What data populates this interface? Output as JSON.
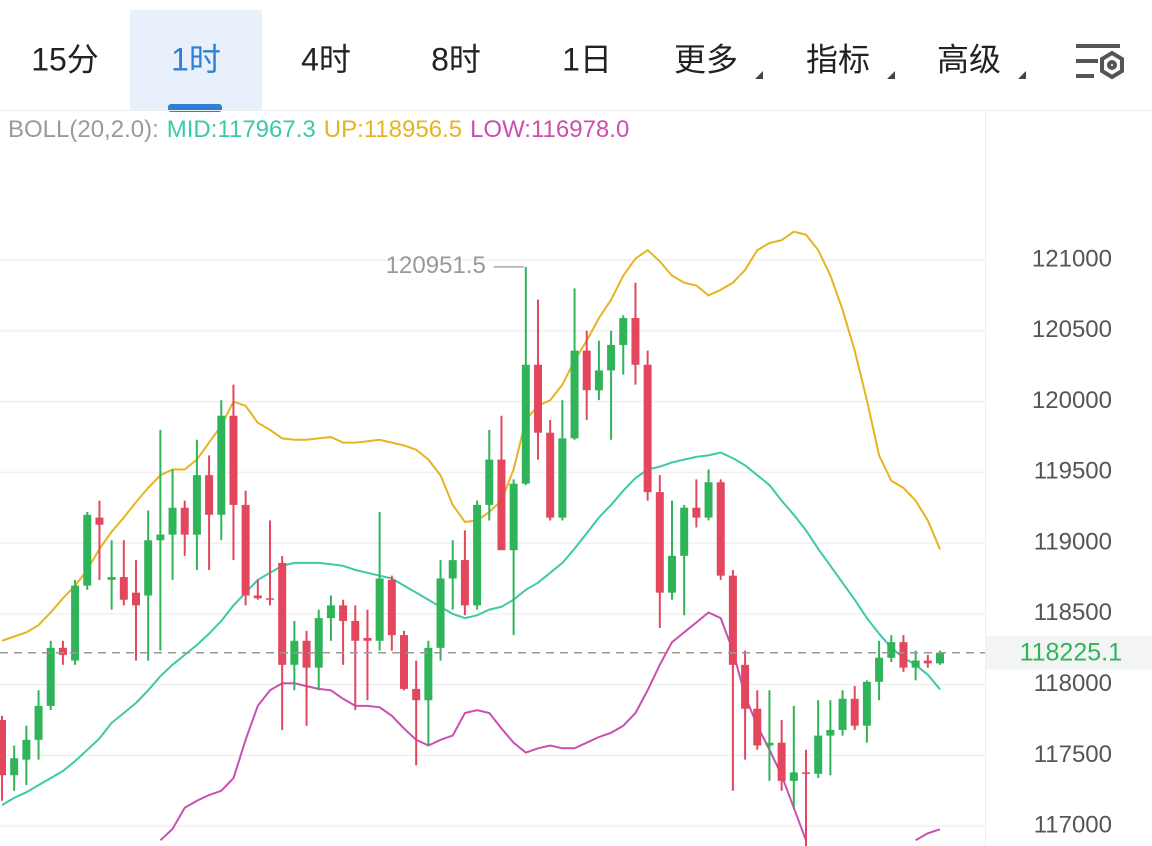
{
  "tabs": [
    "15分",
    "1时",
    "4时",
    "8时",
    "1日",
    "更多",
    "指标",
    "高级"
  ],
  "active_tab": 1,
  "chart_data": {
    "type": "candlestick",
    "indicator": {
      "name": "BOLL(20,2.0):",
      "mid": "MID:117967.3",
      "up": "UP:118956.5",
      "low": "LOW:116978.0"
    },
    "open": [
      117750,
      117360,
      117470,
      117610,
      117850,
      118260,
      118170,
      118700,
      119180,
      118740,
      118760,
      118650,
      118630,
      119020,
      119060,
      119250,
      119060,
      119480,
      119200,
      119900,
      119270,
      118630,
      118610,
      118860,
      118140,
      118310,
      118120,
      118470,
      118560,
      118450,
      118330,
      118310,
      118740,
      118350,
      117970,
      117890,
      118260,
      118750,
      118880,
      118560,
      119270,
      119590,
      118950,
      119420,
      120260,
      119780,
      119180,
      119740,
      120360,
      120080,
      120220,
      120400,
      120590,
      120260,
      119360,
      118650,
      118910,
      119250,
      119180,
      119430,
      118770,
      118140,
      117830,
      117570,
      117590,
      117320,
      117380,
      117370,
      117640,
      117680,
      117900,
      117710,
      118020,
      118190,
      118300,
      118120,
      118170,
      118150
    ],
    "high": [
      117780,
      117570,
      117710,
      117960,
      118310,
      118310,
      118740,
      119220,
      119300,
      119020,
      119020,
      118880,
      119230,
      119800,
      119520,
      119300,
      119730,
      119620,
      120010,
      120120,
      119370,
      118740,
      119160,
      118910,
      118450,
      118380,
      118530,
      118630,
      118600,
      118560,
      118530,
      119220,
      118770,
      118380,
      118170,
      118310,
      118880,
      119020,
      119090,
      119300,
      119800,
      119900,
      119450,
      120951.5,
      120720,
      119870,
      120010,
      120800,
      120500,
      120430,
      120500,
      120610,
      120840,
      120360,
      119480,
      119300,
      119270,
      119450,
      119520,
      119450,
      118810,
      118240,
      117960,
      117960,
      117750,
      117850,
      117540,
      117890,
      117890,
      117960,
      117990,
      118030,
      118310,
      118350,
      118350,
      118240,
      118210,
      118240
    ],
    "low": [
      117180,
      117250,
      117290,
      117470,
      117820,
      118140,
      118140,
      118670,
      118740,
      118530,
      118560,
      118170,
      118170,
      118240,
      118740,
      118910,
      118810,
      118810,
      119020,
      118880,
      118560,
      118600,
      118560,
      117680,
      117960,
      117710,
      117960,
      118310,
      118140,
      117820,
      117890,
      118240,
      118240,
      117960,
      117430,
      117570,
      118170,
      118530,
      118490,
      118530,
      119160,
      118950,
      118350,
      119410,
      119590,
      119160,
      119160,
      119730,
      119870,
      120010,
      119730,
      120190,
      120120,
      119300,
      118400,
      118600,
      118490,
      119110,
      119160,
      118740,
      117250,
      117470,
      117540,
      117320,
      117250,
      117130,
      116860,
      117340,
      117360,
      117640,
      117680,
      117590,
      117890,
      118160,
      118090,
      118030,
      118120,
      118140
    ],
    "close": [
      117360,
      117480,
      117610,
      117850,
      118260,
      118210,
      118700,
      119200,
      119130,
      118760,
      118600,
      118560,
      119020,
      119060,
      119250,
      119060,
      119480,
      119200,
      119900,
      119270,
      118630,
      118610,
      118600,
      118140,
      118310,
      118120,
      118470,
      118560,
      118450,
      118310,
      118310,
      118750,
      118350,
      117970,
      117890,
      118260,
      118750,
      118880,
      118560,
      119270,
      119590,
      118950,
      119420,
      120260,
      119780,
      119180,
      119740,
      120360,
      120080,
      120220,
      120400,
      120590,
      120260,
      119360,
      118650,
      118910,
      119250,
      119180,
      119430,
      118770,
      118140,
      117830,
      117570,
      117590,
      117320,
      117380,
      117370,
      117640,
      117680,
      117900,
      117710,
      118020,
      118190,
      118300,
      118120,
      118170,
      118150,
      118225.1
    ],
    "up_color": "#2fb45a",
    "down_color": "#e2475e",
    "series": [
      {
        "name": "UP",
        "color": "#e6b422",
        "values": [
          118310,
          118340,
          118370,
          118420,
          118510,
          118610,
          118700,
          118810,
          118960,
          119080,
          119180,
          119290,
          119390,
          119480,
          119520,
          119520,
          119590,
          119710,
          119830,
          120000,
          119970,
          119850,
          119800,
          119740,
          119730,
          119730,
          119740,
          119750,
          119710,
          119710,
          119720,
          119730,
          119710,
          119690,
          119660,
          119590,
          119480,
          119270,
          119150,
          119160,
          119220,
          119300,
          119520,
          119870,
          119970,
          120010,
          120120,
          120290,
          120430,
          120590,
          120720,
          120890,
          121010,
          121070,
          120990,
          120890,
          120840,
          120820,
          120750,
          120790,
          120840,
          120930,
          121070,
          121120,
          121140,
          121200,
          121180,
          121070,
          120890,
          120650,
          120360,
          120010,
          119620,
          119440,
          119390,
          119300,
          119160,
          118956.5
        ]
      },
      {
        "name": "MID",
        "color": "#3cc9a9",
        "values": [
          117150,
          117200,
          117240,
          117290,
          117340,
          117390,
          117460,
          117540,
          117620,
          117730,
          117800,
          117870,
          117960,
          118060,
          118140,
          118210,
          118280,
          118360,
          118450,
          118560,
          118650,
          118740,
          118790,
          118840,
          118860,
          118860,
          118860,
          118850,
          118840,
          118810,
          118790,
          118770,
          118750,
          118700,
          118650,
          118600,
          118550,
          118500,
          118470,
          118490,
          118530,
          118550,
          118600,
          118670,
          118720,
          118790,
          118860,
          118960,
          119070,
          119180,
          119270,
          119370,
          119460,
          119520,
          119540,
          119570,
          119590,
          119610,
          119620,
          119640,
          119600,
          119550,
          119480,
          119410,
          119300,
          119200,
          119090,
          118960,
          118840,
          118720,
          118600,
          118470,
          118360,
          118260,
          118190,
          118140,
          118070,
          117967.3
        ]
      },
      {
        "name": "LOW",
        "color": "#cc4fae",
        "values": [
          null,
          null,
          null,
          null,
          null,
          null,
          null,
          null,
          null,
          null,
          null,
          null,
          null,
          116900,
          116980,
          117130,
          117180,
          117220,
          117250,
          117340,
          117610,
          117850,
          117960,
          118010,
          118010,
          117990,
          117970,
          117960,
          117900,
          117850,
          117850,
          117840,
          117780,
          117690,
          117610,
          117570,
          117610,
          117640,
          117800,
          117820,
          117800,
          117690,
          117590,
          117520,
          117550,
          117570,
          117550,
          117550,
          117590,
          117630,
          117660,
          117710,
          117800,
          117960,
          118140,
          118300,
          118370,
          118440,
          118510,
          118470,
          118240,
          117920,
          117710,
          117540,
          117360,
          117130,
          116900,
          null,
          null,
          null,
          null,
          null,
          null,
          null,
          null,
          116900,
          116950,
          116978.0
        ]
      }
    ],
    "ylim": [
      116860,
      122060
    ],
    "yticks": [
      117000,
      117500,
      118000,
      118500,
      119000,
      119500,
      120000,
      120500,
      121000
    ],
    "grid": true
  }
}
